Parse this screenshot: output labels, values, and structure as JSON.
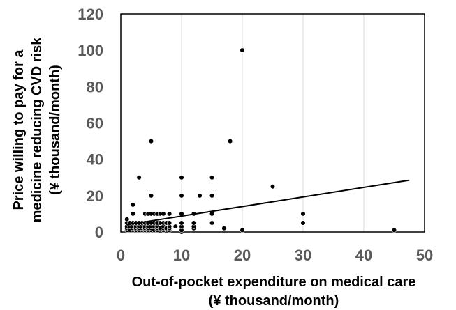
{
  "chart_data": {
    "type": "scatter",
    "title": "",
    "xlabel_lines": [
      "Out-of-pocket expenditure on medical care",
      "(¥ thousand/month)"
    ],
    "ylabel_lines": [
      "Price willing to pay for a",
      "medicine reducing CVD risk",
      "(¥ thousand/month)"
    ],
    "xlim": [
      0,
      50
    ],
    "ylim": [
      0,
      120
    ],
    "xticks": [
      "0",
      "10",
      "20",
      "30",
      "40",
      "50"
    ],
    "yticks": [
      "0",
      "20",
      "40",
      "60",
      "80",
      "100",
      "120"
    ],
    "grid": "vertical",
    "legend": "none",
    "marker_color": "#000000",
    "trendline": {
      "type": "linear",
      "x": [
        1,
        47.5
      ],
      "y": [
        4,
        28.5
      ]
    },
    "points": [
      [
        1,
        1
      ],
      [
        1,
        2
      ],
      [
        1,
        3
      ],
      [
        1,
        5
      ],
      [
        1,
        7
      ],
      [
        1.5,
        1
      ],
      [
        1.5,
        3
      ],
      [
        1.5,
        5
      ],
      [
        2,
        1
      ],
      [
        2,
        2
      ],
      [
        2,
        3
      ],
      [
        2,
        5
      ],
      [
        2,
        10
      ],
      [
        2,
        15
      ],
      [
        2.5,
        1
      ],
      [
        2.5,
        2
      ],
      [
        2.5,
        3
      ],
      [
        2.5,
        5
      ],
      [
        3,
        1
      ],
      [
        3,
        2
      ],
      [
        3,
        3
      ],
      [
        3,
        5
      ],
      [
        3,
        30
      ],
      [
        3.5,
        1
      ],
      [
        3.5,
        2
      ],
      [
        3.5,
        3
      ],
      [
        3.5,
        5
      ],
      [
        4,
        1
      ],
      [
        4,
        2
      ],
      [
        4,
        3
      ],
      [
        4,
        5
      ],
      [
        4,
        10
      ],
      [
        4.5,
        1
      ],
      [
        4.5,
        2
      ],
      [
        4.5,
        3
      ],
      [
        4.5,
        5
      ],
      [
        4.5,
        10
      ],
      [
        5,
        1
      ],
      [
        5,
        2
      ],
      [
        5,
        3
      ],
      [
        5,
        5
      ],
      [
        5,
        10
      ],
      [
        5,
        20
      ],
      [
        5,
        50
      ],
      [
        5.5,
        1
      ],
      [
        5.5,
        3
      ],
      [
        5.5,
        5
      ],
      [
        5.5,
        10
      ],
      [
        6,
        1
      ],
      [
        6,
        2
      ],
      [
        6,
        3
      ],
      [
        6,
        5
      ],
      [
        6,
        10
      ],
      [
        6.5,
        2
      ],
      [
        6.5,
        5
      ],
      [
        6.5,
        10
      ],
      [
        7,
        1
      ],
      [
        7,
        2
      ],
      [
        7,
        3
      ],
      [
        7,
        5
      ],
      [
        7,
        10
      ],
      [
        7.5,
        2
      ],
      [
        7.5,
        5
      ],
      [
        8,
        1
      ],
      [
        8,
        2
      ],
      [
        8,
        3
      ],
      [
        8,
        5
      ],
      [
        8,
        10
      ],
      [
        9,
        3
      ],
      [
        10,
        0
      ],
      [
        10,
        1
      ],
      [
        10,
        3
      ],
      [
        10,
        5
      ],
      [
        10,
        10
      ],
      [
        10,
        20
      ],
      [
        10,
        30
      ],
      [
        12,
        2
      ],
      [
        12,
        3
      ],
      [
        12,
        5
      ],
      [
        12,
        10
      ],
      [
        13,
        20
      ],
      [
        15,
        5
      ],
      [
        15,
        10
      ],
      [
        15,
        20
      ],
      [
        15,
        30
      ],
      [
        17,
        2
      ],
      [
        18,
        50
      ],
      [
        20,
        1
      ],
      [
        20,
        100
      ],
      [
        25,
        25
      ],
      [
        30,
        5
      ],
      [
        30,
        10
      ],
      [
        45,
        1
      ]
    ]
  }
}
